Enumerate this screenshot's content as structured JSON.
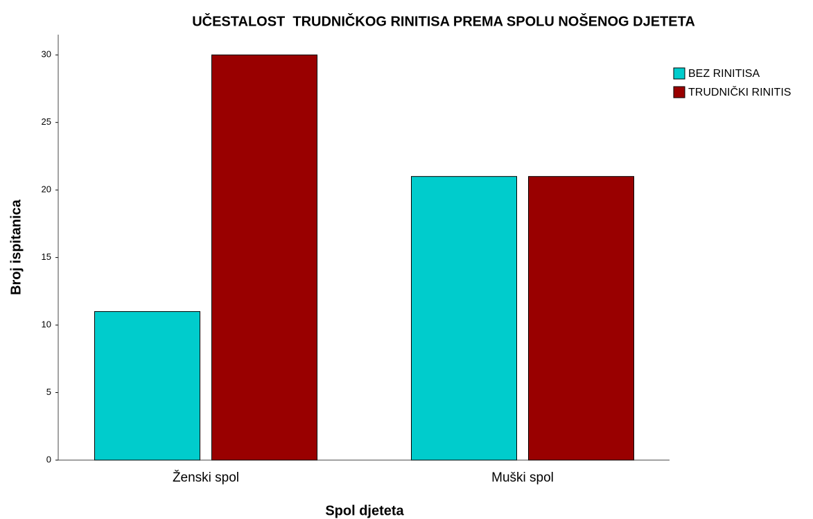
{
  "chart_data": {
    "type": "bar",
    "title": "UČESTALOST  TRUDNIČKOG RINITISA PREMA SPOLU NOŠENOG DJETETA",
    "x_label": "Spol djeteta",
    "y_label": "Broj ispitanica",
    "categories": [
      "Ženski spol",
      "Muški spol"
    ],
    "series": [
      {
        "name": "BEZ RINITISA",
        "color": "#00cccc",
        "values": [
          11,
          21
        ]
      },
      {
        "name": "TRUDNIČKI RINITIS",
        "color": "#990000",
        "values": [
          30,
          21
        ]
      }
    ],
    "ylim": [
      0,
      31.5
    ],
    "yticks": [
      0,
      5,
      10,
      15,
      20,
      25,
      30
    ],
    "grid": false,
    "legend": "right"
  }
}
